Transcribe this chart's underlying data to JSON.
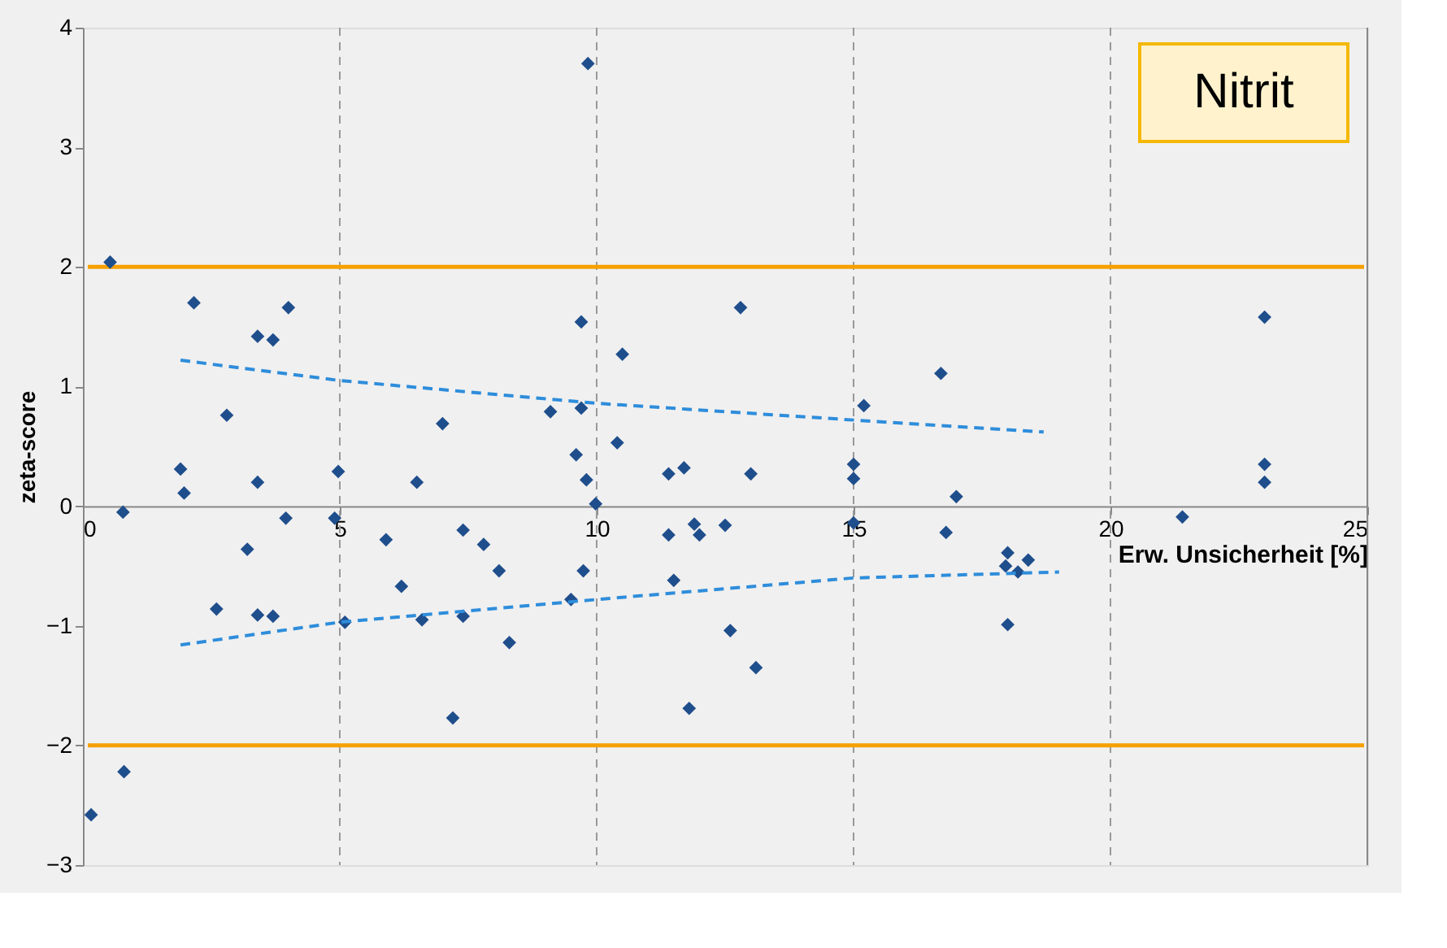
{
  "chart_data": {
    "type": "scatter",
    "title": "Nitrit",
    "xlabel": "Erw. Unsicherheit [%]",
    "ylabel": "zeta-score",
    "xlim": [
      0,
      25
    ],
    "xticks": [
      0,
      5,
      10,
      15,
      20,
      25
    ],
    "ylim": [
      -3,
      4
    ],
    "yticks": [
      -3,
      -2,
      -1,
      0,
      1,
      2,
      3,
      4
    ],
    "grid": "x",
    "ref_lines": [
      {
        "axis": "y",
        "value": 2,
        "color": "#f5a000"
      },
      {
        "axis": "y",
        "value": -2,
        "color": "#f5a000"
      }
    ],
    "series": [
      {
        "marker": "diamond",
        "color": "#1f4e8c",
        "x": [
          0.53,
          0.78,
          2.16,
          1.9,
          1.97,
          2.8,
          2.6,
          3.4,
          3.2,
          3.4,
          3.7,
          4.0,
          3.95,
          3.4,
          3.7,
          4.97,
          4.9,
          5.1,
          5.9,
          6.2,
          6.5,
          6.6,
          7.0,
          7.2,
          7.4,
          7.8,
          7.4,
          8.1,
          8.3,
          9.83,
          9.1,
          9.7,
          9.6,
          9.8,
          9.98,
          9.7,
          10.5,
          10.4,
          11.4,
          11.7,
          13.0,
          12.8,
          11.4,
          11.9,
          12.0,
          12.5,
          11.5,
          12.6,
          13.1,
          11.8,
          9.74,
          9.5,
          15.2,
          15.0,
          15.0,
          15.0,
          16.7,
          17.0,
          16.8,
          18.0,
          17.96,
          18.2,
          18.4,
          18.0,
          21.4,
          23.0,
          23.0,
          23.0,
          0.16,
          0.8
        ],
        "values": [
          2.04,
          -0.05,
          1.7,
          0.31,
          0.11,
          0.76,
          -0.86,
          0.2,
          -0.36,
          1.42,
          1.39,
          1.66,
          -0.1,
          -0.91,
          -0.92,
          0.29,
          -0.1,
          -0.97,
          -0.28,
          -0.67,
          0.2,
          -0.95,
          0.69,
          -1.77,
          -0.2,
          -0.32,
          -0.92,
          -0.54,
          -1.14,
          3.7,
          0.79,
          0.82,
          0.43,
          0.22,
          0.02,
          1.54,
          1.27,
          0.53,
          0.27,
          0.32,
          0.27,
          1.66,
          -0.24,
          -0.15,
          -0.24,
          -0.16,
          -0.62,
          -1.04,
          -1.35,
          -1.69,
          -0.54,
          -0.78,
          0.84,
          0.35,
          0.23,
          -0.14,
          1.11,
          0.08,
          -0.22,
          -0.39,
          -0.5,
          -0.55,
          -0.45,
          -0.99,
          -0.09,
          1.58,
          0.35,
          0.2,
          -2.58,
          -2.22
        ]
      },
      {
        "type": "line",
        "line_style": "dashed",
        "color": "#2e8ddb",
        "x": [
          1.9,
          5,
          10,
          15,
          18.7
        ],
        "values": [
          1.22,
          1.05,
          0.86,
          0.72,
          0.62
        ]
      },
      {
        "type": "line",
        "line_style": "dashed",
        "color": "#2e8ddb",
        "x": [
          1.9,
          5,
          10,
          15,
          19
        ],
        "values": [
          -1.16,
          -0.97,
          -0.78,
          -0.6,
          -0.55
        ]
      }
    ]
  }
}
